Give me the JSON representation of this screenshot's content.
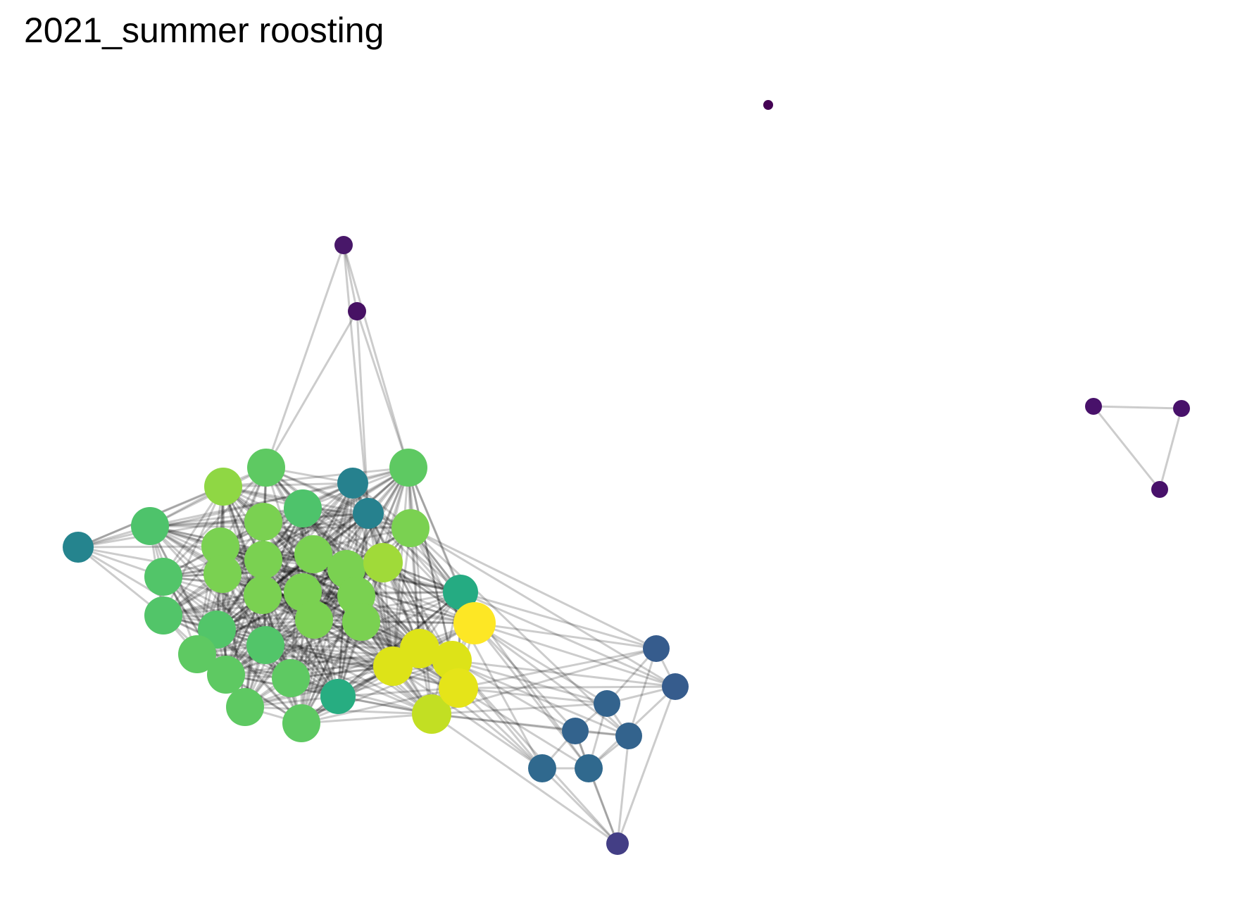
{
  "title": "2021_summer roosting",
  "graph": {
    "directed": false,
    "edge_color": "#000000",
    "color_scale": "viridis (by node degree)",
    "node_count": 60,
    "components": 3
  }
}
